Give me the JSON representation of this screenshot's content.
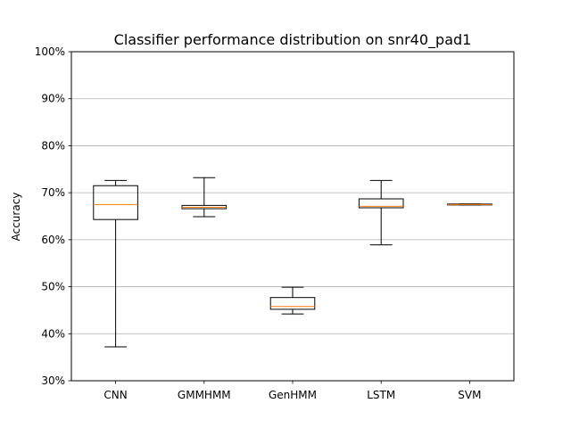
{
  "chart_data": {
    "type": "box",
    "title": "Classifier performance distribution on snr40_pad1",
    "xlabel": "",
    "ylabel": "Accuracy",
    "ylim": [
      30,
      100
    ],
    "ytick_values": [
      30,
      40,
      50,
      60,
      70,
      80,
      90,
      100
    ],
    "ytick_labels": [
      "30%",
      "40%",
      "50%",
      "60%",
      "70%",
      "80%",
      "90%",
      "100%"
    ],
    "grid": "horizontal",
    "categories": [
      "CNN",
      "GMMHMM",
      "GenHMM",
      "LSTM",
      "SVM"
    ],
    "boxes": [
      {
        "category": "CNN",
        "whisker_low": 37.2,
        "q1": 64.3,
        "median": 67.5,
        "q3": 71.5,
        "whisker_high": 72.6
      },
      {
        "category": "GMMHMM",
        "whisker_low": 64.9,
        "q1": 66.6,
        "median": 66.9,
        "q3": 67.3,
        "whisker_high": 73.2
      },
      {
        "category": "GenHMM",
        "whisker_low": 44.2,
        "q1": 45.2,
        "median": 45.8,
        "q3": 47.7,
        "whisker_high": 49.9
      },
      {
        "category": "LSTM",
        "whisker_low": 58.9,
        "q1": 66.8,
        "median": 67.1,
        "q3": 68.7,
        "whisker_high": 72.6
      },
      {
        "category": "SVM",
        "whisker_low": 67.4,
        "q1": 67.4,
        "median": 67.5,
        "q3": 67.6,
        "whisker_high": 67.6
      }
    ],
    "colors": {
      "box": "#000000",
      "median": "#ff7f0e",
      "grid": "#b0b0b0"
    }
  }
}
